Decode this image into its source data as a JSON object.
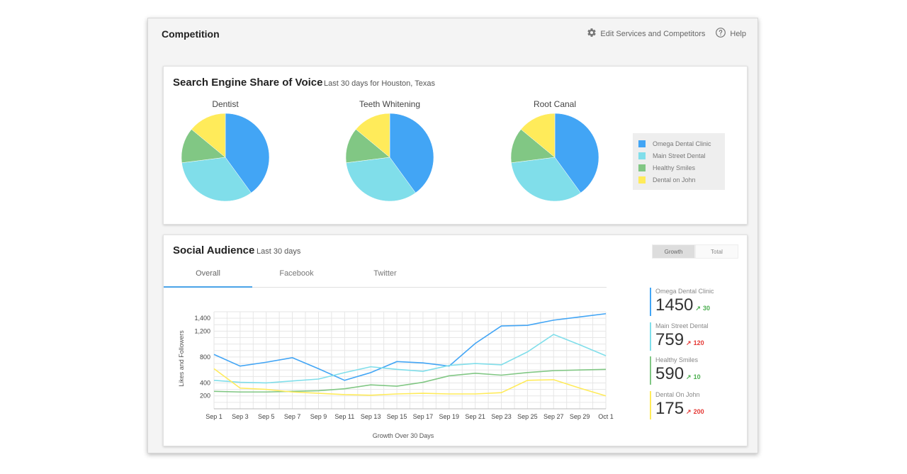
{
  "header": {
    "title": "Competition",
    "edit_label": "Edit Services and Competitors",
    "help_label": "Help"
  },
  "voice": {
    "title": "Search Engine Share of Voice",
    "subtitle": "Last 30 days for Houston, Texas",
    "legend": [
      {
        "label": "Omega Dental Clinic",
        "color": "#42a5f5"
      },
      {
        "label": "Main Street Dental",
        "color": "#80deea"
      },
      {
        "label": "Healthy Smiles",
        "color": "#81c784"
      },
      {
        "label": "Dental on John",
        "color": "#ffeb5a"
      }
    ]
  },
  "social": {
    "title": "Social Audience",
    "subtitle": "Last 30 days",
    "tabs": [
      "Overall",
      "Facebook",
      "Twitter"
    ],
    "toggle": [
      "Growth",
      "Total"
    ],
    "stats": [
      {
        "name": "Omega Dental Clinic",
        "value": "1450",
        "change": "30",
        "direction": "up",
        "color": "#42a5f5"
      },
      {
        "name": "Main Street Dental",
        "value": "759",
        "change": "120",
        "direction": "down",
        "color": "#80deea"
      },
      {
        "name": "Healthy Smiles",
        "value": "590",
        "change": "10",
        "direction": "up",
        "color": "#81c784"
      },
      {
        "name": "Dental On John",
        "value": "175",
        "change": "200",
        "direction": "down",
        "color": "#ffeb5a"
      }
    ]
  },
  "chart_data": [
    {
      "type": "pie",
      "title": "Dentist",
      "labels": [
        "Omega Dental Clinic",
        "Main Street Dental",
        "Healthy Smiles",
        "Dental on John"
      ],
      "values": [
        40,
        33,
        13,
        14
      ],
      "colors": [
        "#42a5f5",
        "#80deea",
        "#81c784",
        "#ffeb5a"
      ]
    },
    {
      "type": "pie",
      "title": "Teeth Whitening",
      "labels": [
        "Omega Dental Clinic",
        "Main Street Dental",
        "Healthy Smiles",
        "Dental on John"
      ],
      "values": [
        40,
        33,
        13,
        14
      ],
      "colors": [
        "#42a5f5",
        "#80deea",
        "#81c784",
        "#ffeb5a"
      ]
    },
    {
      "type": "pie",
      "title": "Root Canal",
      "labels": [
        "Omega Dental Clinic",
        "Main Street Dental",
        "Healthy Smiles",
        "Dental on John"
      ],
      "values": [
        40,
        33,
        13,
        14
      ],
      "colors": [
        "#42a5f5",
        "#80deea",
        "#81c784",
        "#ffeb5a"
      ]
    },
    {
      "type": "line",
      "xlabel": "Growth Over 30 Days",
      "ylabel": "Likes and Followers",
      "ylim": [
        0,
        1500
      ],
      "yticks": [
        200,
        400,
        800,
        1200,
        1400
      ],
      "ytick_labels": [
        "200",
        "400",
        "800",
        "1,200",
        "1,400"
      ],
      "x": [
        "Sep 1",
        "Sep 3",
        "Sep 5",
        "Sep 7",
        "Sep 9",
        "Sep 11",
        "Sep 13",
        "Sep 15",
        "Sep 17",
        "Sep 19",
        "Sep 21",
        "Sep 23",
        "Sep 25",
        "Sep 27",
        "Sep 29",
        "Oct 1"
      ],
      "grid": true,
      "series": [
        {
          "color": "#42a5f5",
          "values": [
            840,
            660,
            720,
            790,
            620,
            440,
            560,
            730,
            710,
            660,
            1010,
            1280,
            1290,
            1370,
            1420,
            1470
          ]
        },
        {
          "color": "#80deea",
          "values": [
            440,
            410,
            400,
            430,
            460,
            560,
            650,
            610,
            580,
            670,
            700,
            680,
            880,
            1150,
            990,
            820
          ]
        },
        {
          "color": "#81c784",
          "values": [
            270,
            260,
            260,
            270,
            280,
            310,
            370,
            350,
            410,
            510,
            550,
            520,
            560,
            590,
            600,
            610
          ]
        },
        {
          "color": "#ffeb5a",
          "values": [
            620,
            320,
            300,
            260,
            240,
            220,
            210,
            230,
            240,
            230,
            230,
            250,
            440,
            450,
            320,
            200
          ]
        }
      ]
    }
  ]
}
